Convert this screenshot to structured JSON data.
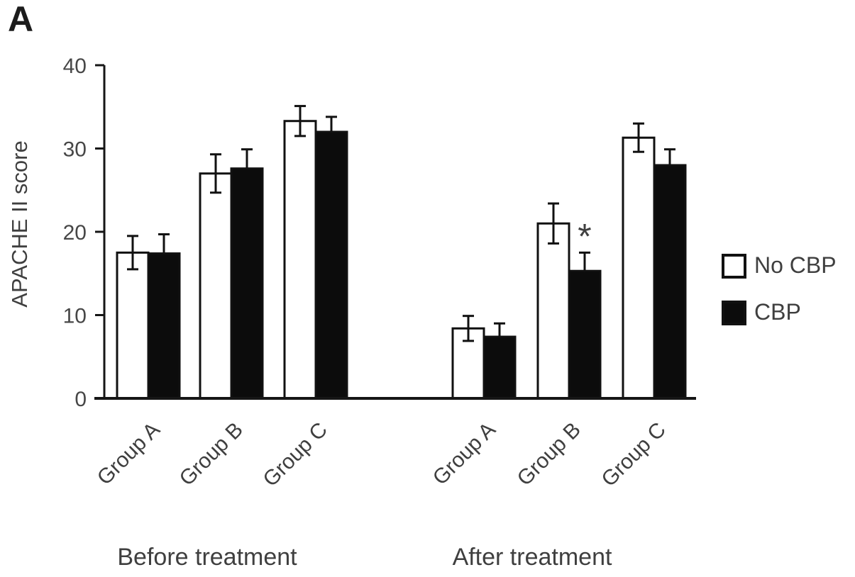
{
  "panel_label": "A",
  "chart_data": {
    "type": "bar",
    "title": "",
    "ylabel": "APACHE II score",
    "ylim": [
      0,
      40
    ],
    "yticks": [
      0,
      10,
      20,
      30,
      40
    ],
    "grid": false,
    "legend": {
      "position": "right",
      "items": [
        {
          "label": "No CBP",
          "swatch": "white"
        },
        {
          "label": "CBP",
          "swatch": "black"
        }
      ]
    },
    "sections": [
      {
        "label": "Before treatment",
        "categories": [
          "Group A",
          "Group B",
          "Group C"
        ],
        "series": [
          {
            "name": "No CBP",
            "fill": "white",
            "values": [
              17.5,
              27.0,
              33.3
            ],
            "errors": [
              2.0,
              2.3,
              1.8
            ]
          },
          {
            "name": "CBP",
            "fill": "black",
            "values": [
              17.4,
              27.6,
              32.0
            ],
            "errors": [
              2.3,
              2.3,
              1.8
            ]
          }
        ]
      },
      {
        "label": "After treatment",
        "categories": [
          "Group A",
          "Group B",
          "Group C"
        ],
        "series": [
          {
            "name": "No CBP",
            "fill": "white",
            "values": [
              8.4,
              21.0,
              31.3
            ],
            "errors": [
              1.5,
              2.4,
              1.7
            ]
          },
          {
            "name": "CBP",
            "fill": "black",
            "values": [
              7.4,
              15.3,
              28.0
            ],
            "errors": [
              1.6,
              2.2,
              1.9
            ]
          }
        ]
      }
    ],
    "annotations": [
      {
        "text": "*",
        "section_index": 1,
        "category": "Group B",
        "series": "CBP"
      }
    ],
    "colors": {
      "bar_fill_black": "#0c0c0c",
      "bar_fill_white": "#ffffff",
      "bar_stroke": "#111111",
      "axis": "#161616",
      "text": "#3f3f3f",
      "tick_text": "#474747",
      "panel_text": "#1c1c1c"
    }
  }
}
